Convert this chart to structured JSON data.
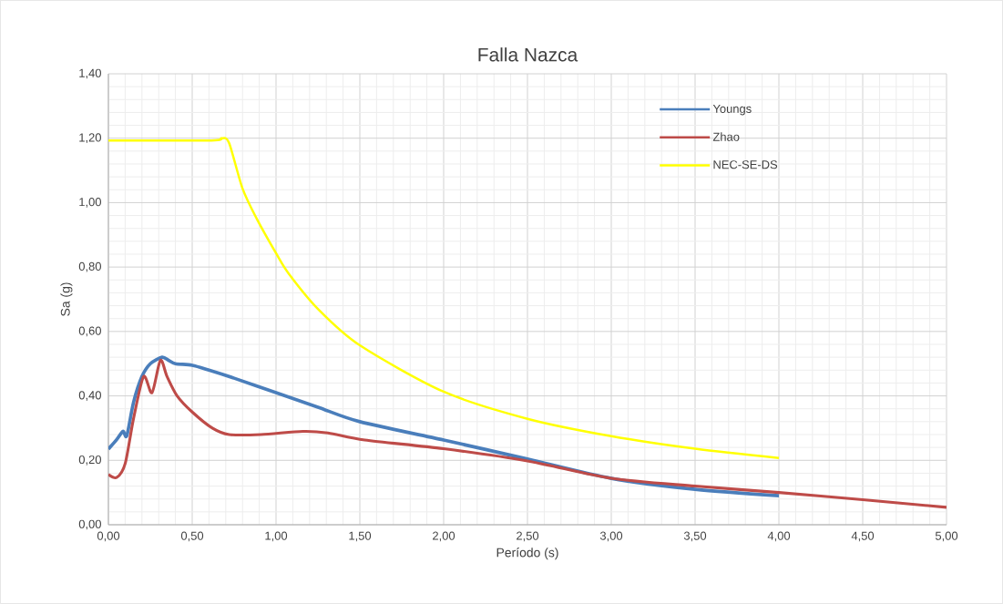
{
  "chart_data": {
    "type": "line",
    "title": "Falla Nazca",
    "xlabel": "Período (s)",
    "ylabel": "Sa (g)",
    "xlim": [
      0,
      5
    ],
    "ylim": [
      0,
      1.4
    ],
    "xticks": [
      {
        "value": 0,
        "label": "0,00"
      },
      {
        "value": 0.5,
        "label": "0,50"
      },
      {
        "value": 1,
        "label": "1,00"
      },
      {
        "value": 1.5,
        "label": "1,50"
      },
      {
        "value": 2,
        "label": "2,00"
      },
      {
        "value": 2.5,
        "label": "2,50"
      },
      {
        "value": 3,
        "label": "3,00"
      },
      {
        "value": 3.5,
        "label": "3,50"
      },
      {
        "value": 4,
        "label": "4,00"
      },
      {
        "value": 4.5,
        "label": "4,50"
      },
      {
        "value": 5,
        "label": "5,00"
      }
    ],
    "yticks": [
      {
        "value": 0,
        "label": "0,00"
      },
      {
        "value": 0.2,
        "label": "0,20"
      },
      {
        "value": 0.4,
        "label": "0,40"
      },
      {
        "value": 0.6,
        "label": "0,60"
      },
      {
        "value": 0.8,
        "label": "0,80"
      },
      {
        "value": 1,
        "label": "1,00"
      },
      {
        "value": 1.2,
        "label": "1,20"
      },
      {
        "value": 1.4,
        "label": "1,40"
      }
    ],
    "grid": true,
    "legend": "top right",
    "marker": "none",
    "line_style": "solid",
    "series": [
      {
        "name": "Youngs",
        "color": "#4a7ebb",
        "x": [
          0,
          0.05,
          0.087,
          0.11,
          0.15,
          0.2,
          0.25,
          0.32,
          0.36,
          0.4,
          0.5,
          0.6,
          0.75,
          1.0,
          1.25,
          1.5,
          2.0,
          2.5,
          3.0,
          3.5,
          4.0
        ],
        "values": [
          0.235,
          0.265,
          0.29,
          0.277,
          0.38,
          0.46,
          0.5,
          0.52,
          0.51,
          0.5,
          0.495,
          0.48,
          0.455,
          0.41,
          0.365,
          0.32,
          0.263,
          0.204,
          0.144,
          0.11,
          0.09
        ]
      },
      {
        "name": "Zhao",
        "color": "#be4b48",
        "x": [
          0,
          0.05,
          0.1,
          0.15,
          0.21,
          0.26,
          0.31,
          0.35,
          0.41,
          0.5,
          0.62,
          0.72,
          0.91,
          1.16,
          1.31,
          1.53,
          2.0,
          2.5,
          3.0,
          3.5,
          4.0,
          4.5,
          5.0
        ],
        "values": [
          0.156,
          0.147,
          0.19,
          0.33,
          0.46,
          0.41,
          0.51,
          0.46,
          0.4,
          0.35,
          0.3,
          0.28,
          0.28,
          0.29,
          0.285,
          0.263,
          0.236,
          0.198,
          0.144,
          0.12,
          0.1,
          0.078,
          0.054
        ]
      },
      {
        "name": "NEC-SE-DS",
        "color": "#ffff00",
        "x": [
          0,
          0.615,
          0.675,
          0.72,
          0.8,
          0.885,
          1.0,
          1.075,
          1.25,
          1.5,
          2.0,
          2.5,
          3.0,
          3.5,
          4.0
        ],
        "values": [
          1.193,
          1.193,
          1.2,
          1.185,
          1.044,
          0.95,
          0.843,
          0.78,
          0.67,
          0.557,
          0.413,
          0.329,
          0.275,
          0.236,
          0.207
        ]
      }
    ]
  }
}
